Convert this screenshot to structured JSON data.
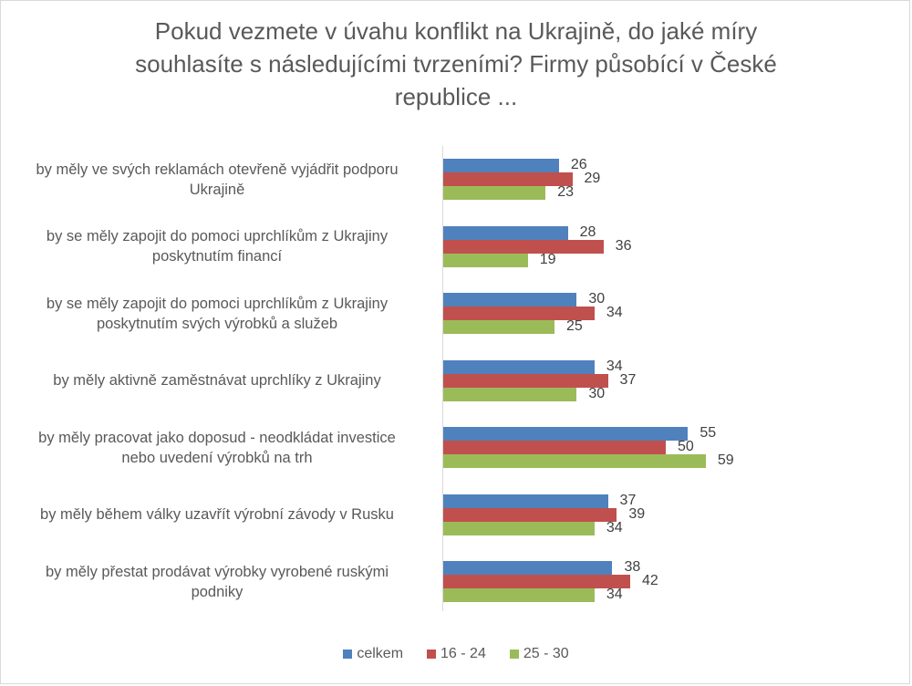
{
  "chart_data": {
    "type": "bar",
    "orientation": "horizontal",
    "title": "Pokud vezmete v úvahu konflikt na Ukrajině, do jaké míry souhlasíte s následujícími tvrzeními? Firmy působící v České republice ...",
    "title_lines": [
      "Pokud vezmete v úvahu konflikt na Ukrajině, do jaké míry",
      "souhlasíte s následujícími tvrzeními? Firmy působící v České",
      "republice ..."
    ],
    "xlabel": "",
    "ylabel": "",
    "xlim": [
      0,
      100
    ],
    "grid": false,
    "legend_position": "bottom",
    "categories": [
      "by měly ve svých reklamách otevřeně vyjádřit podporu Ukrajině",
      "by se měly zapojit do pomoci uprchlíkům z Ukrajiny poskytnutím financí",
      "by se měly zapojit do pomoci uprchlíkům z Ukrajiny poskytnutím svých výrobků a služeb",
      "by měly aktivně zaměstnávat uprchlíky z Ukrajiny",
      "by měly pracovat jako doposud - neodkládat investice nebo uvedení výrobků na trh",
      "by měly během války uzavřít výrobní závody v Rusku",
      "by měly přestat prodávat výrobky vyrobené ruskými podniky"
    ],
    "category_lines": [
      [
        "by měly ve svých reklamách otevřeně vyjádřit podporu",
        "Ukrajině"
      ],
      [
        "by se měly zapojit do pomoci uprchlíkům z Ukrajiny",
        "poskytnutím financí"
      ],
      [
        "by se měly zapojit do pomoci uprchlíkům z Ukrajiny",
        "poskytnutím svých výrobků a služeb"
      ],
      [
        "by měly aktivně zaměstnávat uprchlíky z Ukrajiny"
      ],
      [
        "by měly pracovat jako doposud - neodkládat investice",
        "nebo uvedení výrobků na trh"
      ],
      [
        "by měly během války uzavřít výrobní závody v Rusku"
      ],
      [
        "by měly přestat prodávat výrobky vyrobené ruskými",
        "podniky"
      ]
    ],
    "series": [
      {
        "name": "celkem",
        "color": "#4f81bd",
        "values": [
          26,
          28,
          30,
          34,
          55,
          37,
          38
        ]
      },
      {
        "name": "16 - 24",
        "color": "#c0504d",
        "values": [
          29,
          36,
          34,
          37,
          50,
          39,
          42
        ]
      },
      {
        "name": "25 - 30",
        "color": "#9bbb59",
        "values": [
          23,
          19,
          25,
          30,
          59,
          34,
          34
        ]
      }
    ]
  }
}
